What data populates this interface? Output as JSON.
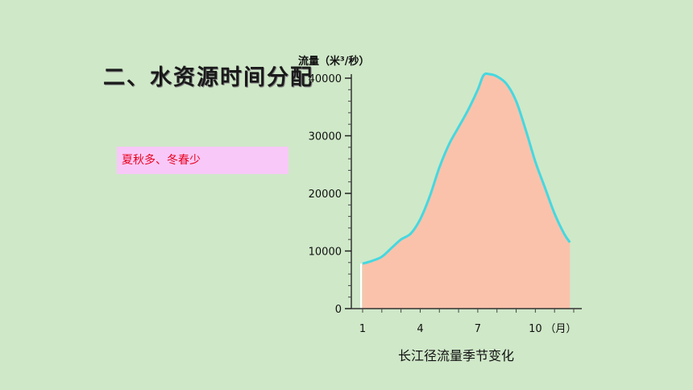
{
  "slide": {
    "title": "二、水资源时间分配",
    "note": "夏秋多、冬春少"
  },
  "colors": {
    "background": "#cfe8c8",
    "area_fill": "#fbc2ab",
    "curve": "#45d8e0",
    "note_bg": "#f8c8f8",
    "note_text": "#e8001c"
  },
  "chart_data": {
    "type": "area",
    "ylabel": "流量（米³/秒）",
    "xunit": "（月）",
    "caption": "长江径流量季节变化",
    "xlim": [
      1,
      12
    ],
    "ylim": [
      0,
      40000
    ],
    "yticks": [
      0,
      10000,
      20000,
      30000,
      40000
    ],
    "yticklabels": [
      "0",
      "10000",
      "20000",
      "30000",
      "40000"
    ],
    "xticks": [
      1,
      4,
      7,
      10
    ],
    "xticklabels": [
      "1",
      "4",
      "7",
      "10"
    ],
    "series": [
      {
        "x": [
          1,
          1.5,
          2,
          2.5,
          3,
          3.5,
          4,
          4.5,
          5,
          5.5,
          6,
          6.5,
          7,
          7.3,
          7.6,
          8,
          8.5,
          9,
          9.5,
          10,
          10.5,
          11,
          11.5,
          11.8
        ],
        "y": [
          7800,
          8300,
          9000,
          10500,
          12000,
          13000,
          15500,
          19500,
          24500,
          28500,
          31500,
          34500,
          38000,
          40500,
          40700,
          40300,
          39000,
          36000,
          31000,
          25500,
          21000,
          16500,
          13000,
          11500
        ]
      }
    ]
  }
}
